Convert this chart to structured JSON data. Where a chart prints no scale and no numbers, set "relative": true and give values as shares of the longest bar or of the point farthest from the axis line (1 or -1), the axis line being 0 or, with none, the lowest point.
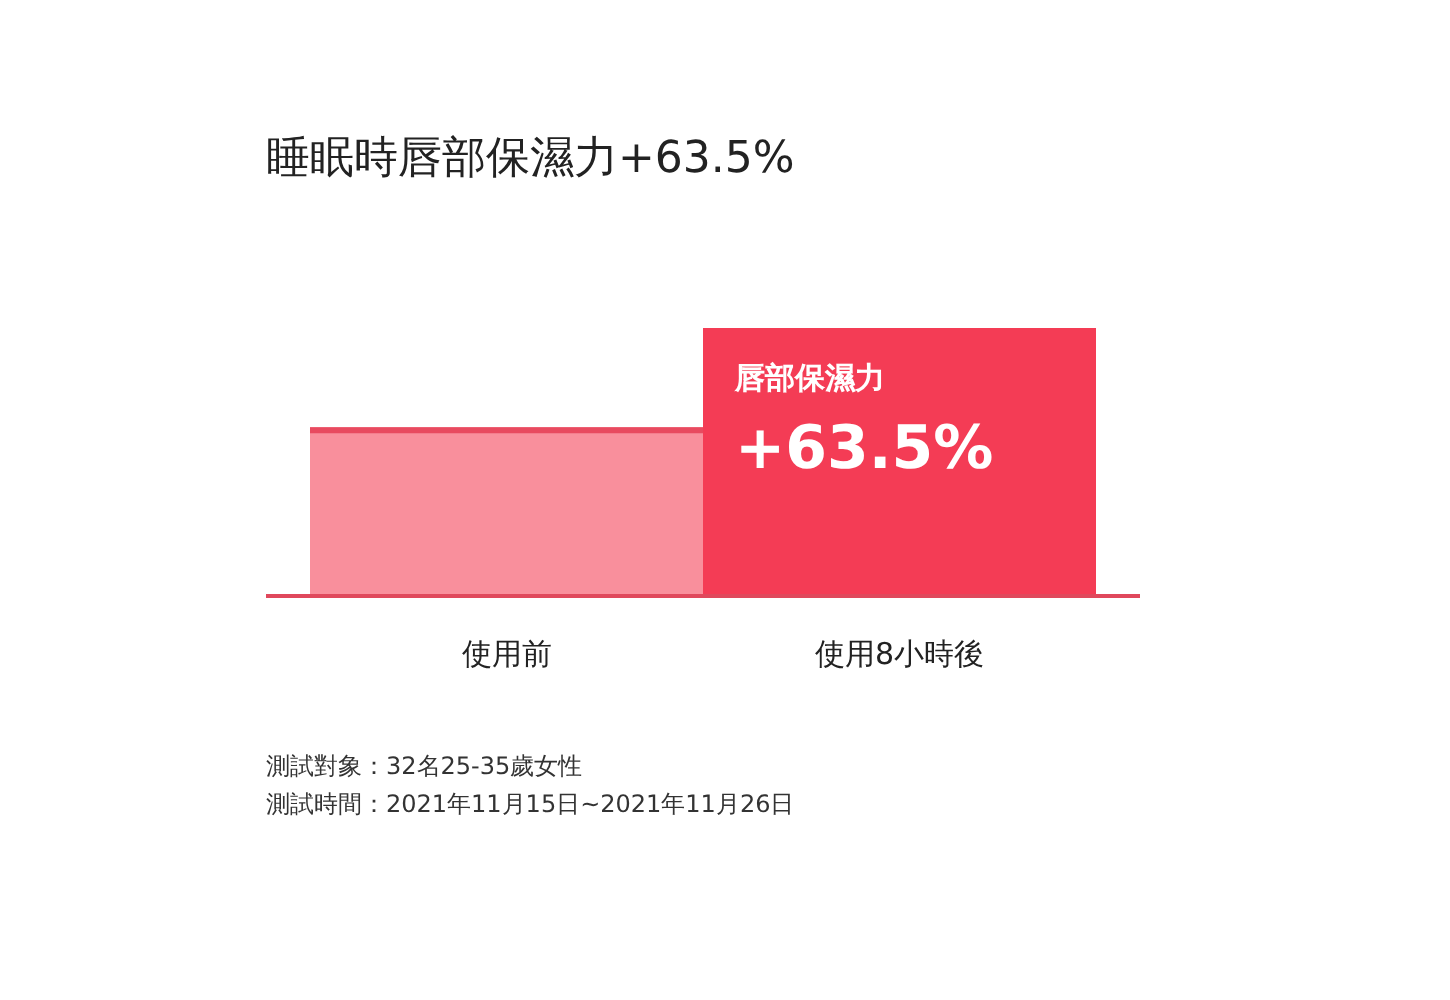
{
  "chart_data": {
    "type": "bar",
    "title": "睡眠時唇部保濕力+63.5%",
    "relative": true,
    "categories": [
      "使用前",
      "使用8小時後"
    ],
    "values": [
      0.63,
      1
    ],
    "colors": [
      "#f98f9c",
      "#f43c55"
    ],
    "annotations": [
      {
        "text": "唇部保濕力",
        "x": "使用8小時後",
        "y": 1
      },
      {
        "text": "+63.5%",
        "x": "使用8小時後",
        "y": 1
      },
      "測試對象：32名25-35歲女性",
      "測試時間：2021年11月15日~2021年11月26日"
    ]
  }
}
